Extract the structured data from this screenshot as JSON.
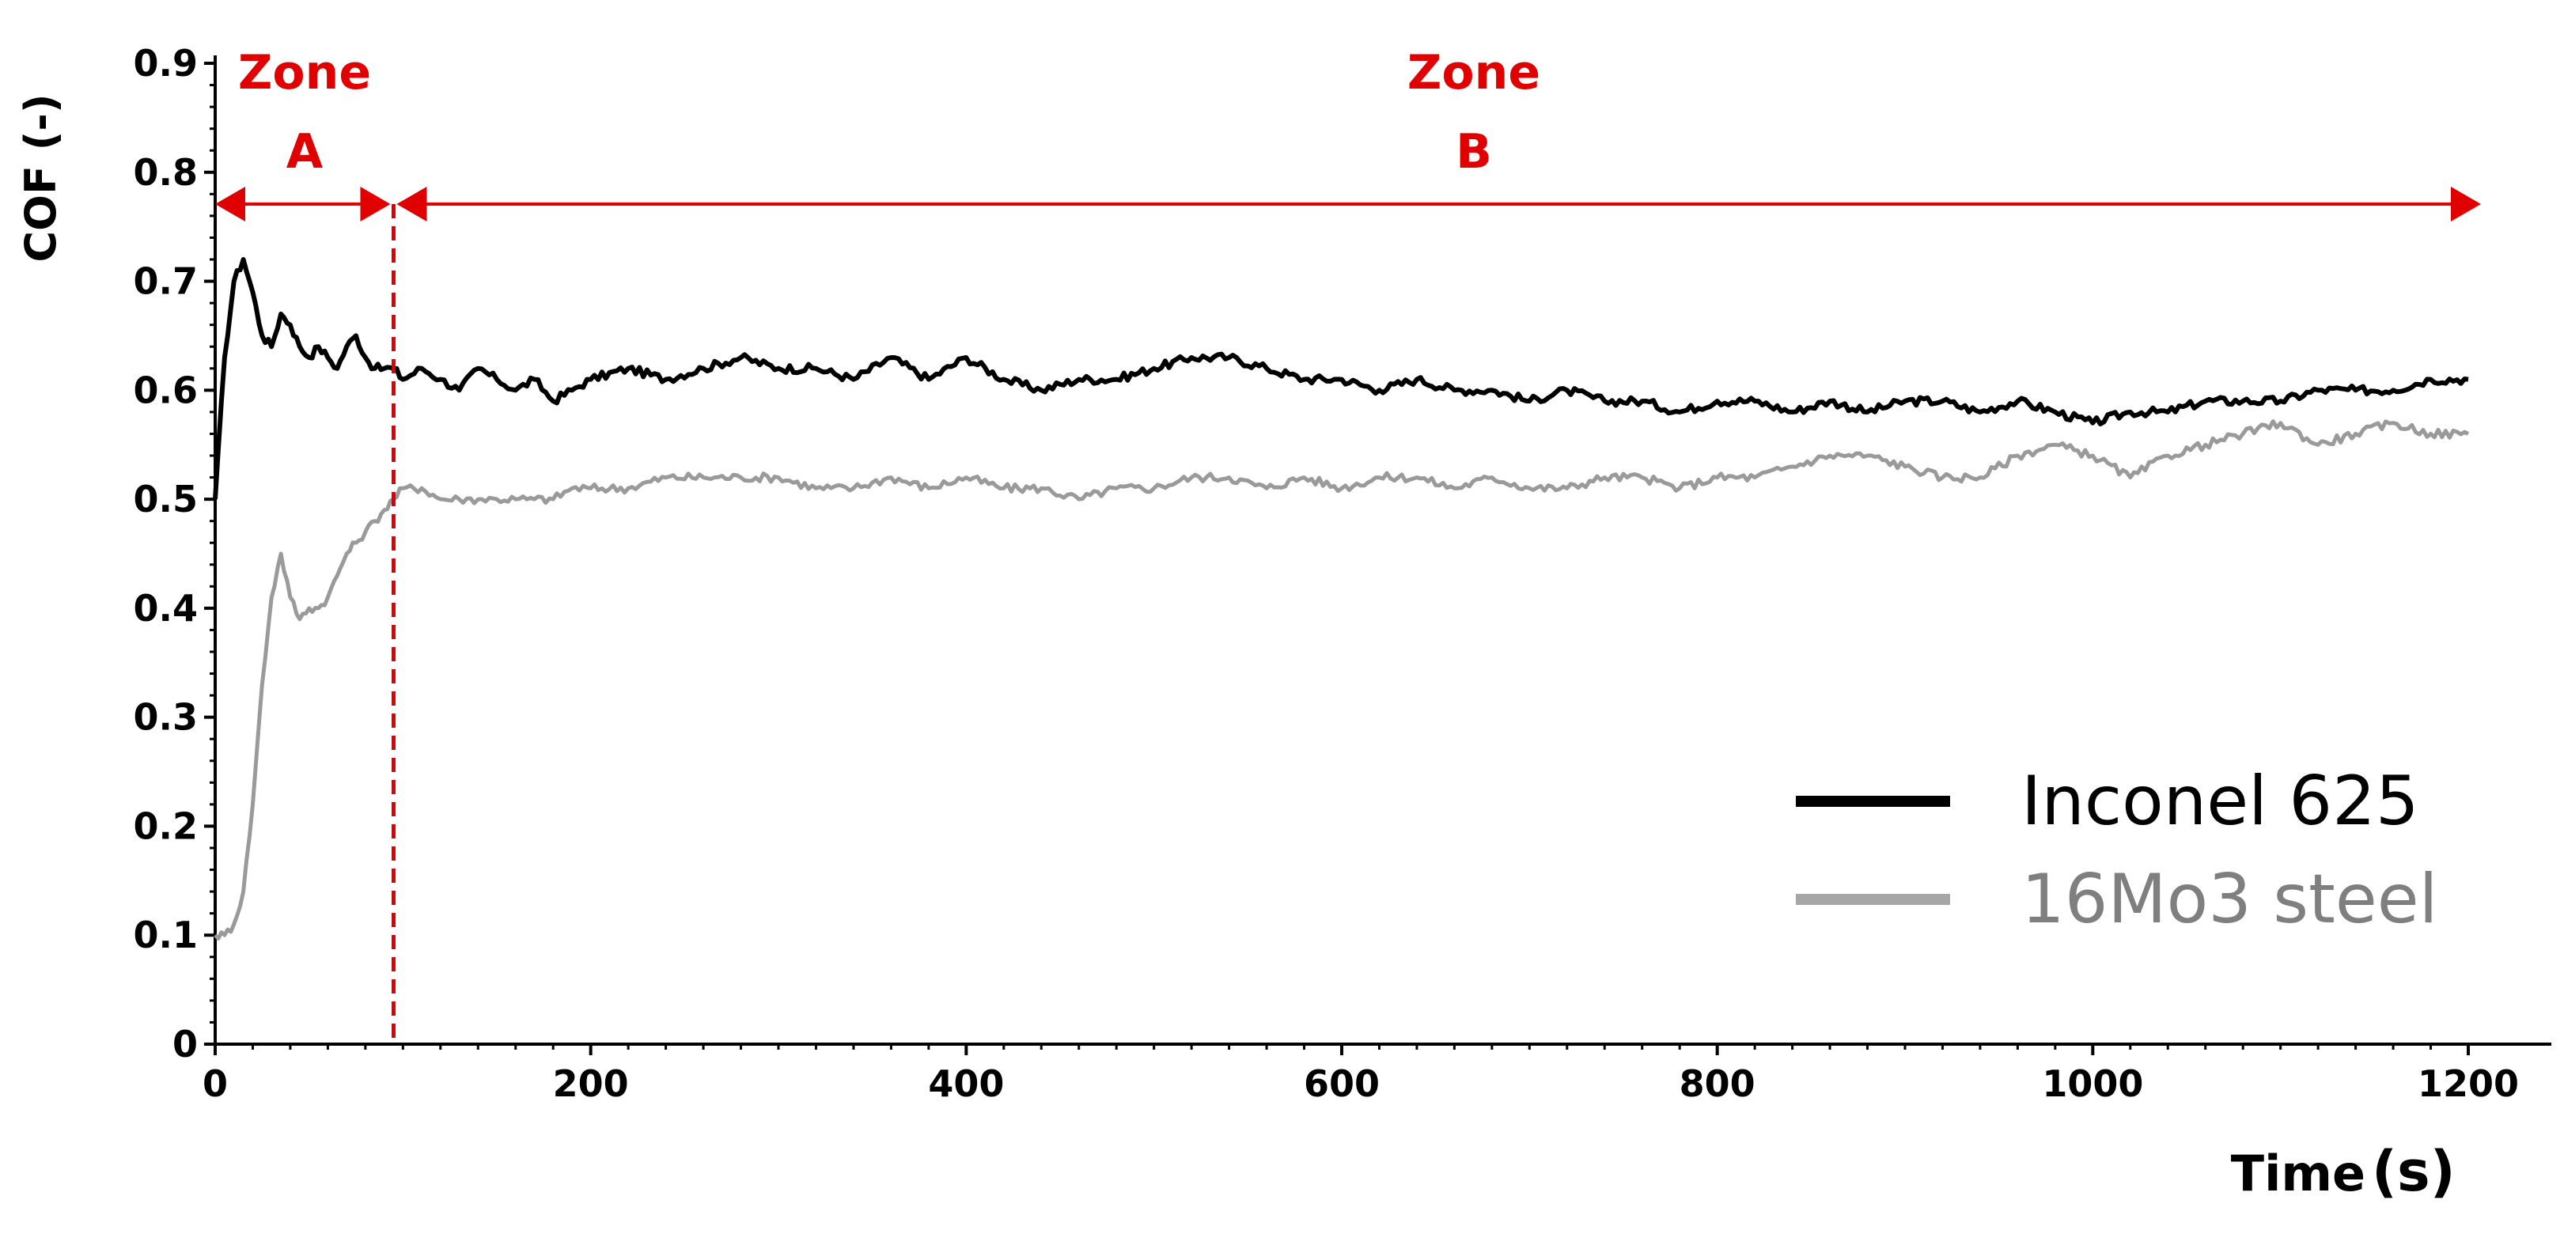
{
  "chart_data": {
    "type": "line",
    "xlabel": "Time",
    "xlabel_unit": "(s)",
    "ylabel": "COF (-)",
    "xlim": [
      0,
      1200
    ],
    "ylim": [
      0,
      0.9
    ],
    "x_ticks": [
      "0",
      "200",
      "400",
      "600",
      "800",
      "1000",
      "1200"
    ],
    "y_ticks": [
      "0",
      "0.1",
      "0.2",
      "0.3",
      "0.4",
      "0.5",
      "0.6",
      "0.7",
      "0.8",
      "0.9"
    ],
    "grid": false,
    "legend_position": "bottom-right",
    "zones": [
      {
        "label_line1": "Zone",
        "label_line2": "A",
        "x_start": 0,
        "x_end": 95
      },
      {
        "label_line1": "Zone",
        "label_line2": "B",
        "x_start": 95,
        "x_end": 1200
      }
    ],
    "zone_boundary_x": 95,
    "zone_color": "#e00000",
    "series": [
      {
        "name": "Inconel 625",
        "color": "#000000",
        "x": [
          0,
          5,
          10,
          15,
          20,
          25,
          30,
          35,
          40,
          45,
          50,
          55,
          60,
          65,
          70,
          75,
          80,
          85,
          90,
          95,
          100,
          110,
          120,
          130,
          140,
          150,
          160,
          170,
          180,
          190,
          200,
          220,
          240,
          260,
          280,
          300,
          320,
          340,
          360,
          380,
          400,
          420,
          440,
          460,
          480,
          500,
          520,
          540,
          560,
          580,
          600,
          620,
          640,
          660,
          680,
          700,
          720,
          740,
          760,
          780,
          800,
          820,
          840,
          860,
          880,
          900,
          920,
          940,
          960,
          980,
          1000,
          1020,
          1040,
          1060,
          1080,
          1100,
          1120,
          1140,
          1160,
          1180,
          1200
        ],
        "values": [
          0.5,
          0.63,
          0.7,
          0.72,
          0.69,
          0.65,
          0.64,
          0.67,
          0.66,
          0.64,
          0.63,
          0.64,
          0.63,
          0.62,
          0.64,
          0.65,
          0.63,
          0.62,
          0.62,
          0.62,
          0.61,
          0.62,
          0.61,
          0.6,
          0.62,
          0.61,
          0.6,
          0.61,
          0.59,
          0.6,
          0.61,
          0.62,
          0.61,
          0.62,
          0.63,
          0.62,
          0.62,
          0.61,
          0.63,
          0.61,
          0.63,
          0.61,
          0.6,
          0.61,
          0.61,
          0.62,
          0.63,
          0.63,
          0.62,
          0.61,
          0.61,
          0.6,
          0.61,
          0.6,
          0.6,
          0.59,
          0.6,
          0.59,
          0.59,
          0.58,
          0.59,
          0.59,
          0.58,
          0.59,
          0.58,
          0.59,
          0.59,
          0.58,
          0.59,
          0.58,
          0.57,
          0.58,
          0.58,
          0.59,
          0.59,
          0.59,
          0.6,
          0.6,
          0.6,
          0.61,
          0.61
        ]
      },
      {
        "name": "16Mo3 steel",
        "color": "#999999",
        "x": [
          0,
          5,
          10,
          15,
          20,
          25,
          30,
          35,
          40,
          45,
          50,
          55,
          60,
          65,
          70,
          75,
          80,
          85,
          90,
          95,
          100,
          110,
          120,
          130,
          140,
          150,
          160,
          170,
          180,
          190,
          200,
          220,
          240,
          260,
          280,
          300,
          320,
          340,
          360,
          380,
          400,
          420,
          440,
          460,
          480,
          500,
          520,
          540,
          560,
          580,
          600,
          620,
          640,
          660,
          680,
          700,
          720,
          740,
          760,
          780,
          800,
          820,
          840,
          860,
          880,
          900,
          920,
          940,
          960,
          980,
          1000,
          1020,
          1040,
          1060,
          1080,
          1100,
          1120,
          1140,
          1160,
          1180,
          1200
        ],
        "values": [
          0.1,
          0.1,
          0.11,
          0.14,
          0.22,
          0.33,
          0.41,
          0.45,
          0.41,
          0.39,
          0.4,
          0.4,
          0.41,
          0.43,
          0.45,
          0.46,
          0.47,
          0.48,
          0.49,
          0.5,
          0.51,
          0.51,
          0.5,
          0.5,
          0.5,
          0.5,
          0.5,
          0.5,
          0.5,
          0.51,
          0.51,
          0.51,
          0.52,
          0.52,
          0.52,
          0.52,
          0.51,
          0.51,
          0.52,
          0.51,
          0.52,
          0.51,
          0.51,
          0.5,
          0.51,
          0.51,
          0.52,
          0.52,
          0.51,
          0.52,
          0.51,
          0.52,
          0.52,
          0.51,
          0.52,
          0.51,
          0.51,
          0.52,
          0.52,
          0.51,
          0.52,
          0.52,
          0.53,
          0.54,
          0.54,
          0.53,
          0.52,
          0.52,
          0.54,
          0.55,
          0.54,
          0.52,
          0.54,
          0.55,
          0.56,
          0.57,
          0.55,
          0.56,
          0.57,
          0.56,
          0.56
        ]
      }
    ]
  }
}
